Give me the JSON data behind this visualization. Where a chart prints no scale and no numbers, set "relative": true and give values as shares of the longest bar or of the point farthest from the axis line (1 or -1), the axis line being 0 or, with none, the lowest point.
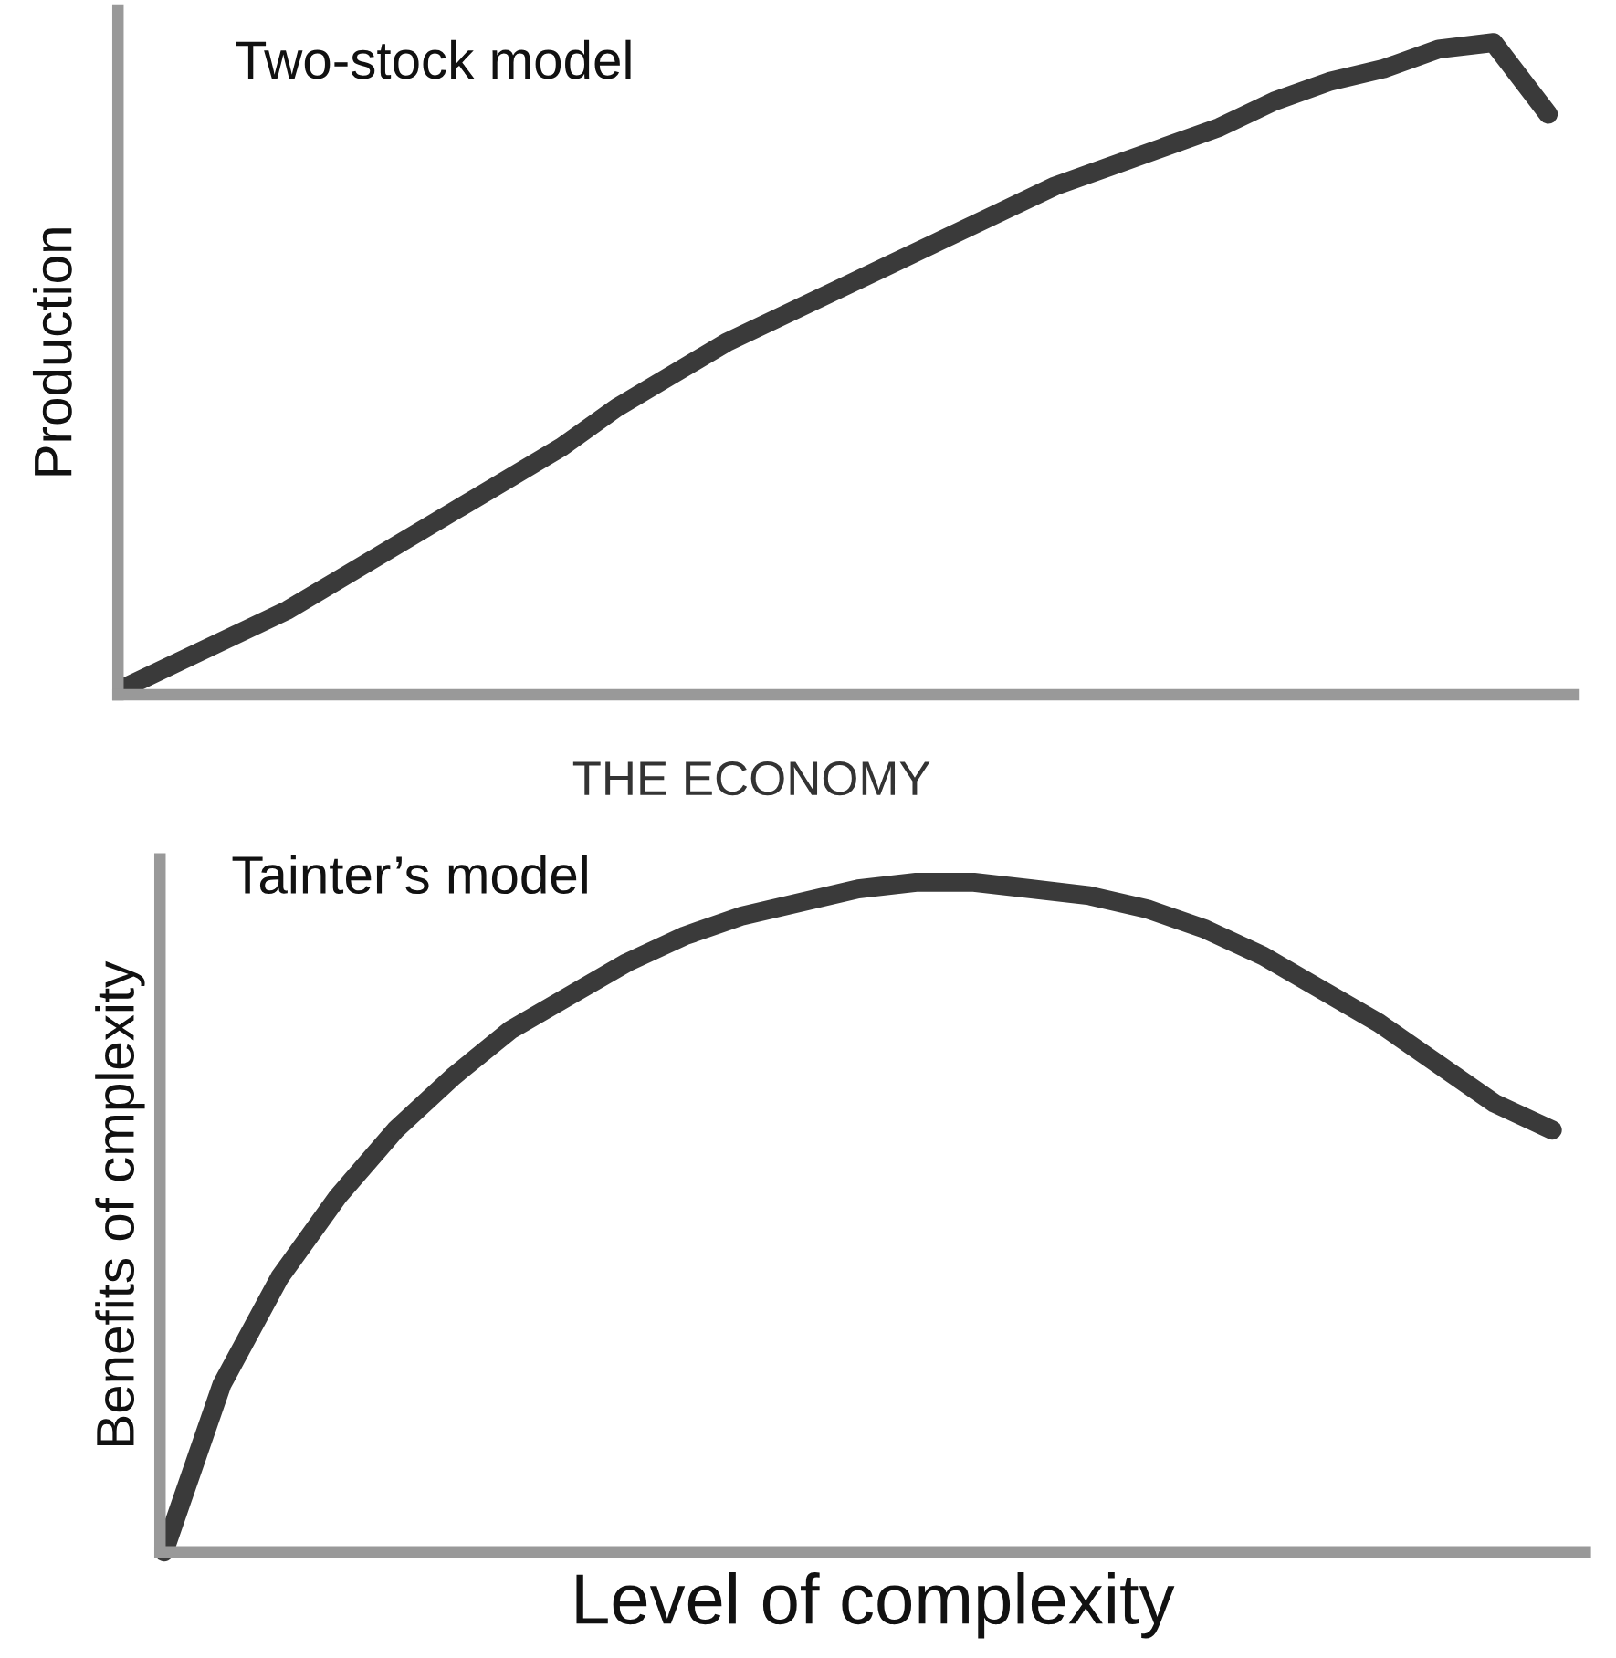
{
  "chart_data": [
    {
      "type": "line",
      "relative": true,
      "title": "Two-stock model",
      "ylabel": "Production",
      "tick_labels": false,
      "marker": "none",
      "line_style": "solid",
      "categories": [
        null,
        null,
        null,
        null,
        null,
        null,
        null,
        null,
        null,
        null,
        null,
        null,
        null,
        null,
        null,
        null,
        null,
        null,
        null,
        null,
        null,
        null,
        null,
        null,
        null,
        null,
        null
      ],
      "series": [
        {
          "color": "#3a3a3a",
          "values": [
            0.01,
            0.05,
            0.09,
            0.13,
            0.18,
            0.23,
            0.28,
            0.33,
            0.38,
            0.44,
            0.49,
            0.54,
            0.58,
            0.62,
            0.66,
            0.7,
            0.74,
            0.78,
            0.81,
            0.84,
            0.87,
            0.91,
            0.94,
            0.96,
            0.99,
            1.0,
            0.89
          ]
        }
      ]
    },
    {
      "type": "line",
      "relative": true,
      "title": "Tainter’s model",
      "ylabel": "Benefits of cmplexity",
      "xlabel": "Level of complexity",
      "annotations": [
        "THE ECONOMY"
      ],
      "tick_labels": false,
      "marker": "none",
      "line_style": "solid",
      "categories": [
        null,
        null,
        null,
        null,
        null,
        null,
        null,
        null,
        null,
        null,
        null,
        null,
        null,
        null,
        null,
        null,
        null,
        null,
        null,
        null,
        null,
        null,
        null,
        null,
        null
      ],
      "series": [
        {
          "color": "#3a3a3a",
          "values": [
            0,
            0.25,
            0.41,
            0.53,
            0.63,
            0.71,
            0.78,
            0.83,
            0.88,
            0.92,
            0.95,
            0.97,
            0.99,
            1.0,
            1.0,
            0.99,
            0.98,
            0.96,
            0.93,
            0.89,
            0.84,
            0.79,
            0.73,
            0.67,
            0.63
          ]
        }
      ]
    }
  ]
}
